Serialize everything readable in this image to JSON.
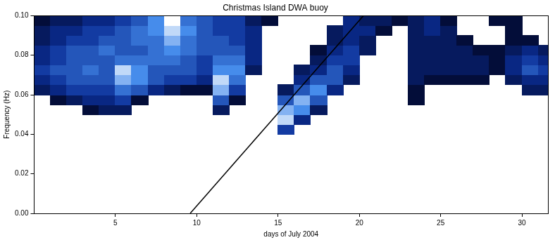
{
  "chart_data": {
    "type": "heatmap",
    "title": "Christmas Island DWA buoy",
    "x_label": "days of July 2004",
    "y_label": "Frequency (Hz)",
    "xlim": [
      0,
      31.6
    ],
    "xticks": [
      5,
      10,
      15,
      20,
      25,
      30
    ],
    "ylim": [
      0,
      0.1
    ],
    "yticks": [
      {
        "value": 0,
        "label": "0.00"
      },
      {
        "value": 0.02,
        "label": "0.02"
      },
      {
        "value": 0.04,
        "label": "0.04"
      },
      {
        "value": 0.06,
        "label": "0.06"
      },
      {
        "value": 0.08,
        "label": "0.08"
      },
      {
        "value": 0.1,
        "label": "0.10"
      }
    ],
    "grid": false,
    "x_bins": [
      0,
      1,
      2,
      3,
      4,
      5,
      6,
      7,
      8,
      9,
      10,
      11,
      12,
      13,
      14,
      15,
      16,
      17,
      18,
      19,
      20,
      21,
      22,
      23,
      24,
      25,
      26,
      27,
      28,
      29,
      30,
      31,
      32
    ],
    "y_bins": [
      0.04,
      0.045,
      0.05,
      0.055,
      0.06,
      0.065,
      0.07,
      0.075,
      0.08,
      0.085,
      0.09,
      0.095,
      0.1
    ],
    "zlim": [
      0,
      10
    ],
    "values": [
      [
        null,
        null,
        null,
        null,
        2,
        3,
        4,
        3,
        3,
        2,
        2,
        1
      ],
      [
        null,
        null,
        null,
        1,
        3,
        4,
        5,
        4,
        4,
        3,
        3,
        2
      ],
      [
        null,
        null,
        null,
        2,
        4,
        5,
        5,
        5,
        5,
        4,
        3,
        2
      ],
      [
        null,
        null,
        1,
        3,
        4,
        5,
        6,
        5,
        5,
        4,
        4,
        3
      ],
      [
        null,
        null,
        2,
        3,
        4,
        5,
        5,
        5,
        6,
        5,
        4,
        3
      ],
      [
        null,
        null,
        2,
        4,
        6,
        8,
        9,
        6,
        5,
        5,
        5,
        4
      ],
      [
        null,
        null,
        null,
        1,
        5,
        7,
        7,
        6,
        5,
        6,
        6,
        5
      ],
      [
        null,
        null,
        null,
        null,
        3,
        5,
        5,
        6,
        6,
        6,
        7,
        7
      ],
      [
        null,
        null,
        null,
        null,
        2,
        4,
        5,
        6,
        7,
        8,
        9,
        10
      ],
      [
        null,
        null,
        null,
        null,
        1,
        4,
        5,
        5,
        6,
        6,
        7,
        6
      ],
      [
        null,
        null,
        null,
        null,
        1,
        3,
        4,
        4,
        5,
        5,
        5,
        5
      ],
      [
        null,
        null,
        2,
        5,
        8,
        9,
        7,
        6,
        5,
        5,
        4,
        4
      ],
      [
        null,
        null,
        null,
        1,
        4,
        6,
        7,
        6,
        5,
        4,
        4,
        4
      ],
      [
        null,
        null,
        null,
        null,
        null,
        null,
        2,
        3,
        3,
        3,
        3,
        2
      ],
      [
        null,
        null,
        null,
        null,
        null,
        null,
        null,
        null,
        null,
        null,
        null,
        1
      ],
      [
        4,
        9,
        8,
        5,
        2,
        null,
        null,
        null,
        null,
        null,
        null,
        null
      ],
      [
        null,
        3,
        7,
        8,
        5,
        3,
        2,
        null,
        null,
        null,
        null,
        null
      ],
      [
        null,
        null,
        2,
        5,
        7,
        5,
        3,
        2,
        1,
        null,
        null,
        null
      ],
      [
        null,
        null,
        null,
        null,
        3,
        5,
        5,
        4,
        3,
        2,
        2,
        null
      ],
      [
        null,
        null,
        null,
        null,
        null,
        2,
        3,
        4,
        4,
        3,
        3,
        3
      ],
      [
        null,
        null,
        null,
        null,
        null,
        null,
        null,
        null,
        2,
        2,
        3,
        2
      ],
      [
        null,
        null,
        null,
        null,
        null,
        null,
        null,
        null,
        null,
        null,
        1,
        2
      ],
      [
        null,
        null,
        null,
        null,
        null,
        null,
        null,
        null,
        null,
        null,
        null,
        1
      ],
      [
        null,
        null,
        null,
        1,
        1,
        2,
        2,
        2,
        2,
        2,
        2,
        2
      ],
      [
        null,
        null,
        null,
        null,
        null,
        1,
        2,
        2,
        2,
        2,
        3,
        3
      ],
      [
        null,
        null,
        null,
        null,
        null,
        1,
        2,
        2,
        2,
        2,
        2,
        1
      ],
      [
        null,
        null,
        null,
        null,
        null,
        1,
        2,
        2,
        2,
        1,
        null,
        null
      ],
      [
        null,
        null,
        null,
        null,
        null,
        1,
        2,
        2,
        1,
        null,
        null,
        null
      ],
      [
        null,
        null,
        null,
        null,
        null,
        null,
        1,
        1,
        1,
        null,
        null,
        1
      ],
      [
        null,
        null,
        null,
        null,
        null,
        2,
        3,
        3,
        2,
        1,
        1,
        1
      ],
      [
        null,
        null,
        null,
        null,
        2,
        3,
        5,
        4,
        3,
        1,
        null,
        null
      ],
      [
        null,
        null,
        null,
        null,
        2,
        3,
        4,
        3,
        2,
        null,
        null,
        null
      ]
    ],
    "line": {
      "x": [
        9.6,
        20.25
      ],
      "y": [
        0,
        0.1
      ],
      "color": "#000000"
    }
  }
}
